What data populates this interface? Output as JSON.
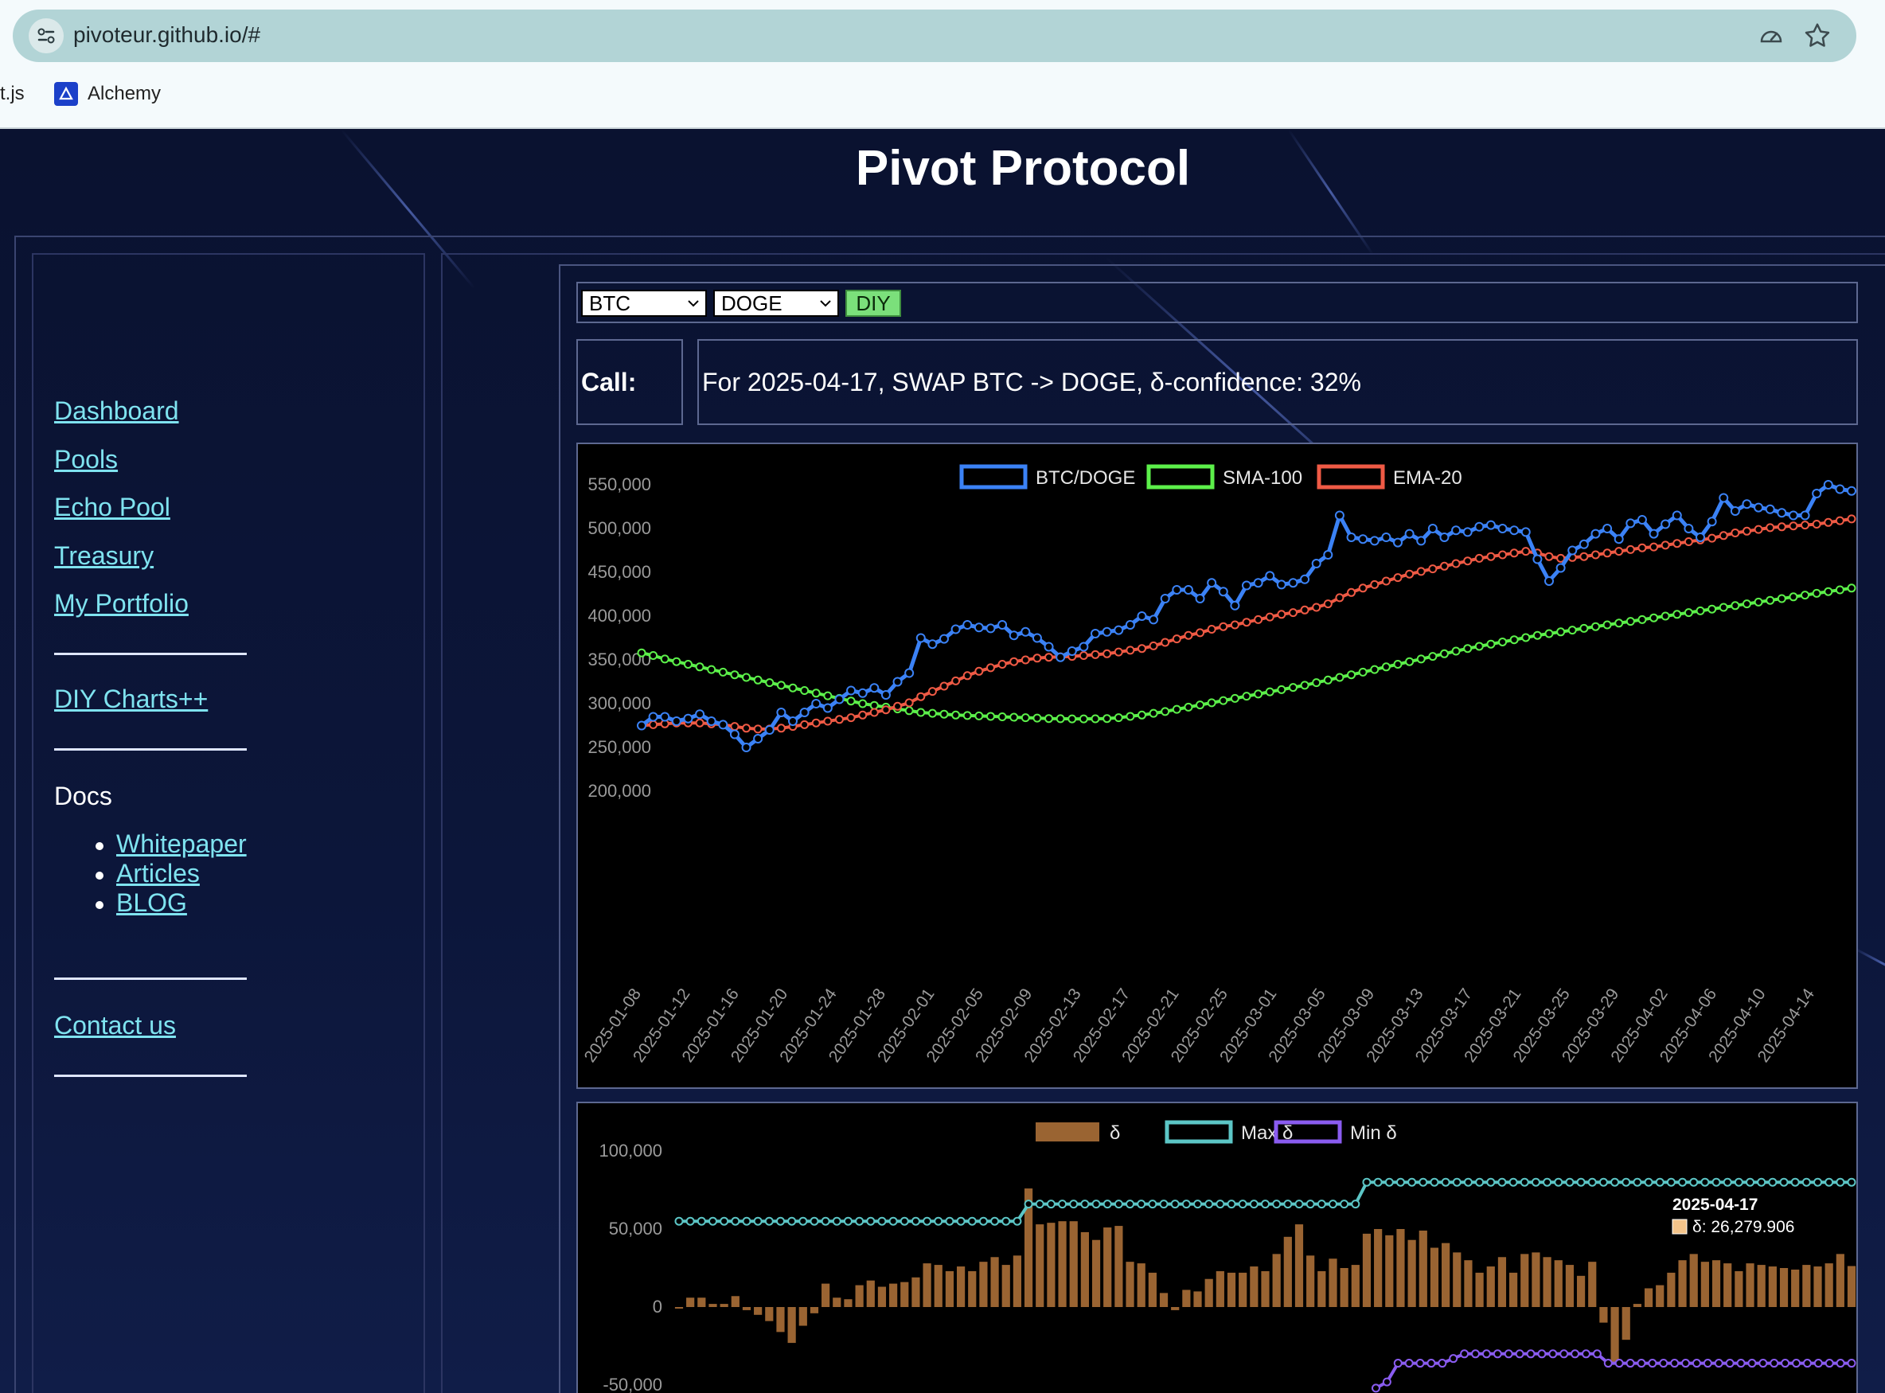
{
  "browser": {
    "url": "pivoteur.github.io/#",
    "bookmarks": [
      {
        "label": "t.js"
      },
      {
        "label": "Alchemy"
      }
    ]
  },
  "site": {
    "title": "Pivot Protocol"
  },
  "sidebar": {
    "links": [
      {
        "label": "Dashboard"
      },
      {
        "label": "Pools"
      },
      {
        "label": "Echo Pool"
      },
      {
        "label": "Treasury"
      },
      {
        "label": "My Portfolio"
      },
      {
        "label": "DIY Charts++"
      }
    ],
    "docs_label": "Docs",
    "docs_links": [
      {
        "label": "Whitepaper"
      },
      {
        "label": "Articles"
      },
      {
        "label": "BLOG"
      }
    ],
    "contact_label": "Contact us"
  },
  "controls": {
    "from_token": "BTC",
    "to_token": "DOGE",
    "diy_label": "DIY",
    "call_label": "Call:",
    "call_text": "For 2025-04-17, SWAP BTC -> DOGE, δ-confidence: 32%"
  },
  "colors": {
    "series1": "#3b82f6",
    "series2": "#5cf04a",
    "series3": "#ef5a45",
    "delta": "#9a6432",
    "max": "#5cc6c6",
    "min": "#8a5cf0",
    "accent_link": "#7fe3f0"
  },
  "chart_data": [
    {
      "type": "line",
      "x_start": "2025-01-08",
      "x_end": "2025-04-17",
      "xtick_labels": [
        "2025-01-08",
        "2025-01-12",
        "2025-01-16",
        "2025-01-20",
        "2025-01-24",
        "2025-01-28",
        "2025-02-01",
        "2025-02-05",
        "2025-02-09",
        "2025-02-13",
        "2025-02-17",
        "2025-02-21",
        "2025-02-25",
        "2025-03-01",
        "2025-03-05",
        "2025-03-09",
        "2025-03-13",
        "2025-03-17",
        "2025-03-21",
        "2025-03-25",
        "2025-03-29",
        "2025-04-02",
        "2025-04-06",
        "2025-04-10",
        "2025-04-14"
      ],
      "ytick_labels": [
        "550,000",
        "500,000",
        "450,000",
        "400,000",
        "350,000",
        "300,000",
        "250,000",
        "200,000"
      ],
      "ylim": [
        200000,
        560000
      ],
      "legend_position": "top",
      "series": [
        {
          "name": "BTC/DOGE",
          "values": [
            275000,
            285000,
            285000,
            280000,
            283000,
            288000,
            280000,
            276000,
            265000,
            250000,
            260000,
            270000,
            290000,
            280000,
            290000,
            300000,
            295000,
            305000,
            315000,
            312000,
            318000,
            310000,
            325000,
            335000,
            375000,
            368000,
            374000,
            385000,
            390000,
            387000,
            386000,
            390000,
            378000,
            382000,
            375000,
            365000,
            353000,
            360000,
            365000,
            380000,
            382000,
            384000,
            390000,
            400000,
            396000,
            420000,
            430000,
            430000,
            420000,
            438000,
            428000,
            412000,
            435000,
            438000,
            446000,
            436000,
            438000,
            442000,
            460000,
            470000,
            515000,
            490000,
            488000,
            486000,
            490000,
            484000,
            494000,
            486000,
            500000,
            490000,
            498000,
            496000,
            502000,
            504000,
            500000,
            498000,
            496000,
            465000,
            440000,
            455000,
            475000,
            482000,
            494000,
            500000,
            488000,
            506000,
            510000,
            494000,
            505000,
            515000,
            500000,
            490000,
            508000,
            535000,
            520000,
            528000,
            524000,
            522000,
            518000,
            515000,
            515000,
            540000,
            550000,
            545000,
            543000
          ]
        },
        {
          "name": "SMA-100",
          "values": [
            358000,
            355000,
            351000,
            348000,
            345000,
            342000,
            339000,
            336000,
            333000,
            330000,
            327000,
            324000,
            321000,
            318000,
            315000,
            312000,
            309000,
            306000,
            303000,
            300000,
            298000,
            296000,
            294000,
            292000,
            290000,
            289000,
            288000,
            287000,
            286500,
            286000,
            285500,
            285000,
            284500,
            284000,
            283500,
            283000,
            282800,
            282600,
            282600,
            282700,
            283000,
            284000,
            285500,
            287000,
            289000,
            291000,
            293500,
            296000,
            298500,
            301000,
            303500,
            306000,
            308500,
            311000,
            313500,
            316000,
            318500,
            321000,
            324000,
            327000,
            330000,
            333000,
            336000,
            339000,
            342000,
            345000,
            348000,
            351000,
            354000,
            357000,
            360000,
            363000,
            365500,
            368000,
            370500,
            373000,
            375500,
            378000,
            380000,
            382000,
            384000,
            386000,
            388000,
            390000,
            392000,
            394000,
            396000,
            398000,
            400000,
            402000,
            404000,
            406000,
            408000,
            410000,
            412000,
            414000,
            416000,
            418000,
            420000,
            422000,
            424000,
            426000,
            428000,
            430000,
            432000
          ]
        },
        {
          "name": "EMA-20",
          "values": [
            275000,
            276000,
            277000,
            278000,
            278000,
            278000,
            277000,
            276000,
            274000,
            272000,
            271000,
            271000,
            272000,
            274000,
            276000,
            278000,
            280000,
            282000,
            284000,
            287000,
            290000,
            293000,
            297000,
            301000,
            308000,
            314000,
            320000,
            326000,
            332000,
            337000,
            341000,
            345000,
            348000,
            350000,
            352000,
            353000,
            353500,
            354000,
            355000,
            356000,
            357000,
            359000,
            361000,
            363000,
            366000,
            370000,
            374000,
            378000,
            381000,
            385000,
            388000,
            390000,
            393000,
            396000,
            399000,
            402000,
            404000,
            407000,
            410000,
            414000,
            421000,
            427000,
            432000,
            436000,
            440000,
            444000,
            448000,
            451000,
            454000,
            457000,
            460000,
            463000,
            466000,
            468000,
            470000,
            472000,
            474000,
            472000,
            468000,
            466000,
            467000,
            468000,
            470000,
            472000,
            474000,
            476000,
            478000,
            479000,
            481000,
            483000,
            485000,
            487000,
            489000,
            492000,
            495000,
            497000,
            499000,
            501000,
            502000,
            503000,
            504000,
            505000,
            507000,
            509000,
            511000
          ]
        }
      ]
    },
    {
      "type": "bar",
      "x_start": "2025-01-08",
      "x_end": "2025-04-17",
      "ytick_labels": [
        "100,000",
        "50,000",
        "0",
        "-50,000"
      ],
      "ylim": [
        -55000,
        105000
      ],
      "legend_position": "top",
      "tooltip": {
        "title": "2025-04-17",
        "label": "δ: 26,279.906"
      },
      "series": [
        {
          "name": "δ",
          "values": [
            -1000,
            6000,
            6000,
            2000,
            2000,
            7000,
            -2000,
            -5000,
            -9000,
            -16000,
            -23000,
            -12000,
            -4000,
            15000,
            6000,
            5000,
            14000,
            17000,
            13000,
            15000,
            16000,
            19000,
            28000,
            27000,
            23000,
            26000,
            23000,
            29000,
            32000,
            27000,
            33000,
            76000,
            53000,
            54000,
            55000,
            55000,
            48000,
            43000,
            51000,
            52000,
            29000,
            28000,
            22000,
            9000,
            -2000,
            11000,
            10000,
            18000,
            23000,
            22000,
            22000,
            26000,
            23000,
            34000,
            45000,
            53000,
            33000,
            23000,
            31000,
            25000,
            27000,
            47000,
            50000,
            46000,
            50000,
            43000,
            49000,
            38000,
            41000,
            35000,
            30000,
            22000,
            26000,
            32000,
            22000,
            34000,
            35000,
            32000,
            30000,
            27000,
            20000,
            29000,
            -10000,
            -36000,
            -21000,
            2000,
            12000,
            14000,
            22000,
            30000,
            34000,
            29000,
            30000,
            28000,
            23000,
            28000,
            27000,
            26000,
            25000,
            24000,
            27000,
            26000,
            28000,
            34000,
            26279.906
          ]
        },
        {
          "name": "Max δ",
          "values": [
            55000,
            55000,
            55000,
            55000,
            55000,
            55000,
            55000,
            55000,
            55000,
            55000,
            55000,
            55000,
            55000,
            55000,
            55000,
            55000,
            55000,
            55000,
            55000,
            55000,
            55000,
            55000,
            55000,
            55000,
            55000,
            55000,
            55000,
            55000,
            55000,
            55000,
            55000,
            66000,
            66000,
            66000,
            66000,
            66000,
            66000,
            66000,
            66000,
            66000,
            66000,
            66000,
            66000,
            66000,
            66000,
            66000,
            66000,
            66000,
            66000,
            66000,
            66000,
            66000,
            66000,
            66000,
            66000,
            66000,
            66000,
            66000,
            66000,
            66000,
            66000,
            80000,
            80000,
            80000,
            80000,
            80000,
            80000,
            80000,
            80000,
            80000,
            80000,
            80000,
            80000,
            80000,
            80000,
            80000,
            80000,
            80000,
            80000,
            80000,
            80000,
            80000,
            80000,
            80000,
            80000,
            80000,
            80000,
            80000,
            80000,
            80000,
            80000,
            80000,
            80000,
            80000,
            80000,
            80000,
            80000,
            80000,
            80000,
            80000,
            80000,
            80000,
            80000,
            80000,
            80000
          ]
        },
        {
          "name": "Min δ",
          "values": [
            null,
            null,
            null,
            null,
            null,
            null,
            null,
            null,
            null,
            null,
            null,
            null,
            null,
            null,
            null,
            null,
            null,
            null,
            null,
            null,
            null,
            null,
            null,
            null,
            null,
            null,
            null,
            null,
            null,
            null,
            null,
            null,
            null,
            null,
            null,
            null,
            null,
            null,
            null,
            null,
            null,
            null,
            null,
            null,
            null,
            null,
            null,
            null,
            null,
            null,
            null,
            null,
            null,
            null,
            null,
            null,
            null,
            null,
            null,
            null,
            null,
            null,
            null,
            -52000,
            -48000,
            -36000,
            -36000,
            -36000,
            -36000,
            -36000,
            -33000,
            -30000,
            -30000,
            -30000,
            -30000,
            -30000,
            -30000,
            -30000,
            -30000,
            -30000,
            -30000,
            -30000,
            -30000,
            -30000,
            -36000,
            -36000,
            -36000,
            -36000,
            -36000,
            -36000,
            -36000,
            -36000,
            -36000,
            -36000,
            -36000,
            -36000,
            -36000,
            -36000,
            -36000,
            -36000,
            -36000,
            -36000,
            -36000,
            -36000,
            -36000,
            -36000,
            -36000
          ]
        }
      ]
    }
  ]
}
